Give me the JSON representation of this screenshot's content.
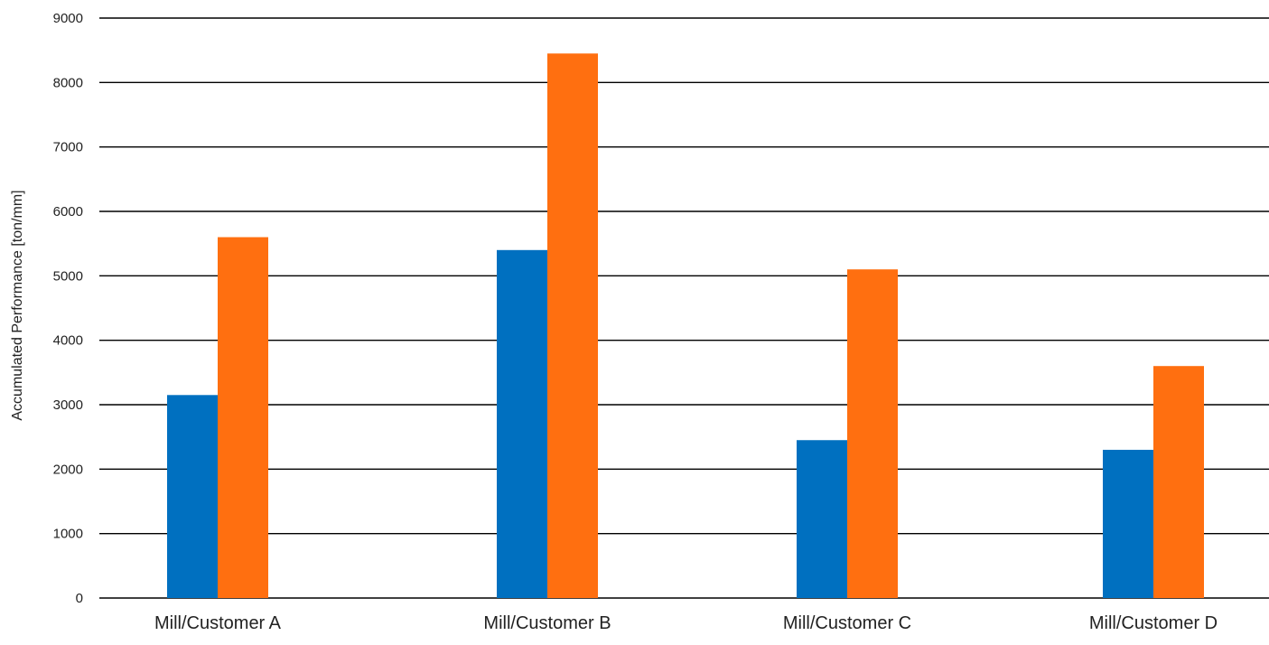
{
  "chart_data": {
    "type": "bar",
    "title": "",
    "xlabel": "",
    "ylabel": "Accumulated Performance [ton/mm]",
    "ylim": [
      0,
      9000
    ],
    "yticks": [
      0,
      1000,
      2000,
      3000,
      4000,
      5000,
      6000,
      7000,
      8000,
      9000
    ],
    "grid": true,
    "legend": "none",
    "categories": [
      "Mill/Customer A",
      "Mill/Customer B",
      "Mill/Customer C",
      "Mill/Customer D"
    ],
    "series": [
      {
        "color": "#0070C0",
        "values": [
          3150,
          5400,
          2450,
          2300
        ]
      },
      {
        "color": "#FF6F10",
        "values": [
          5600,
          8450,
          5100,
          3600
        ]
      }
    ]
  }
}
